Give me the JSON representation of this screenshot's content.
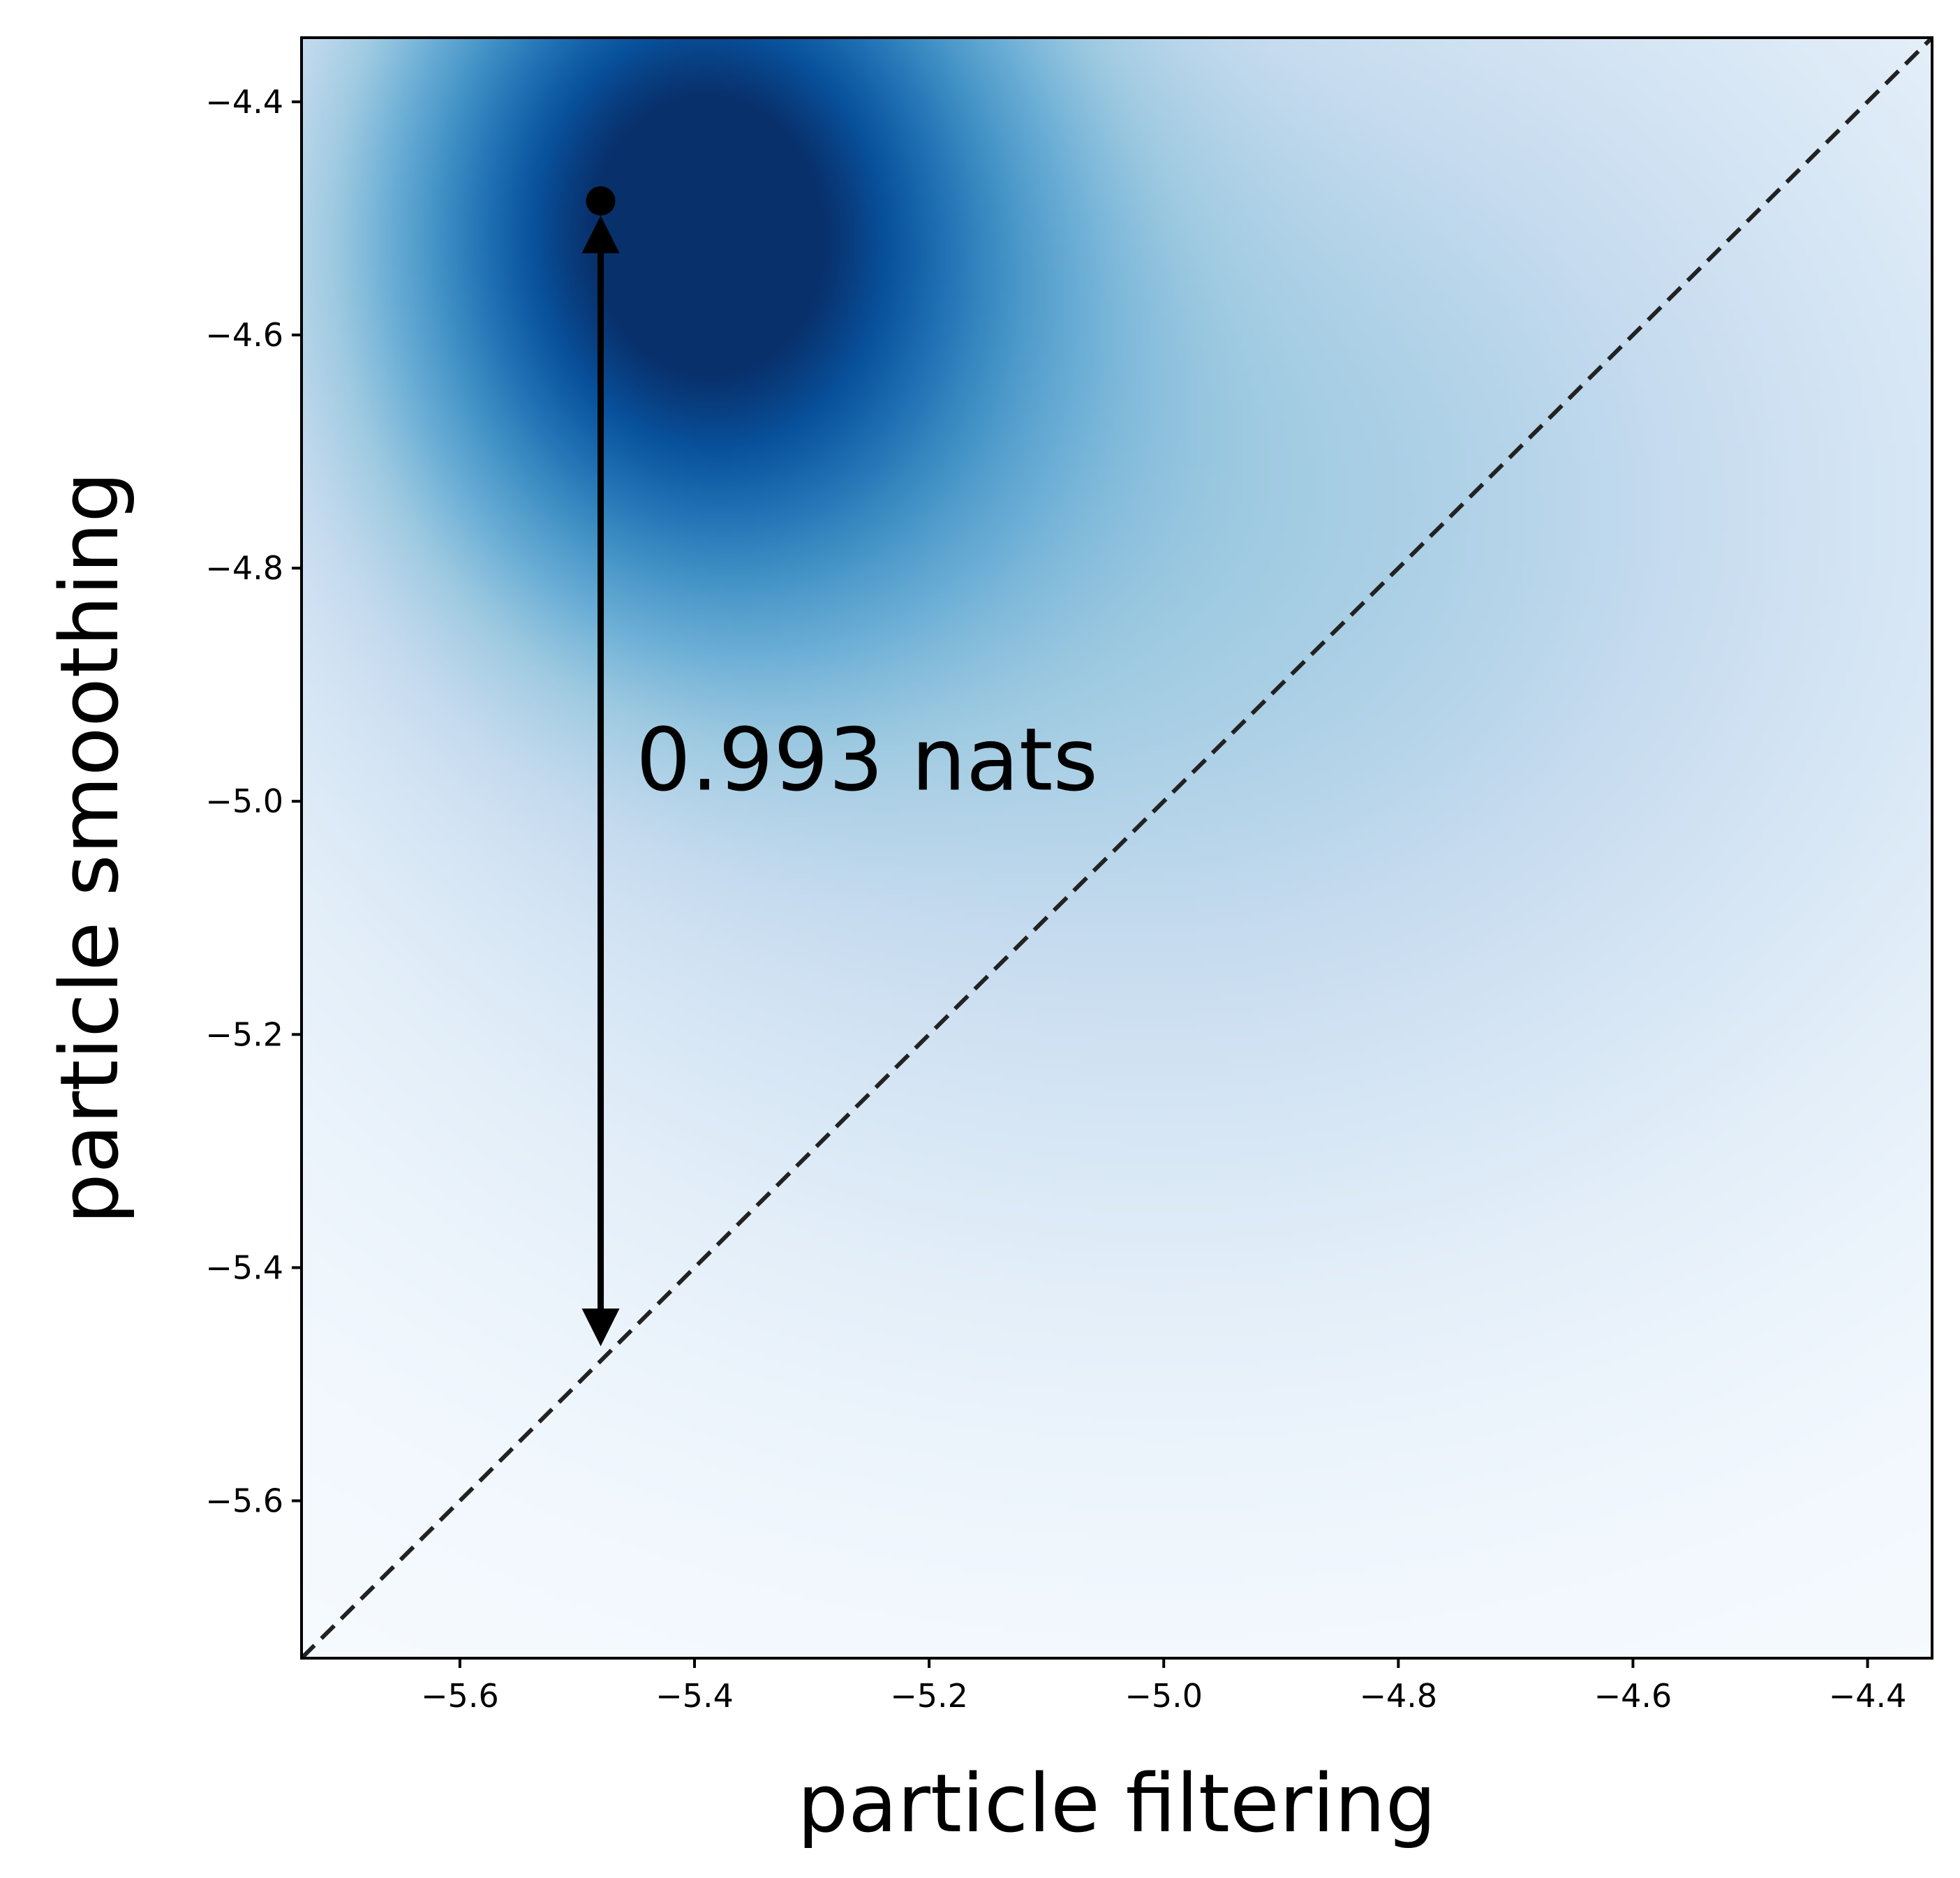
{
  "chart_data": {
    "type": "heatmap",
    "title": "",
    "xlabel": "particle filtering",
    "ylabel": "particle smoothing",
    "xlim": [
      -5.735,
      -4.345
    ],
    "ylim": [
      -5.735,
      -4.345
    ],
    "xticks": [
      -5.6,
      -5.4,
      -5.2,
      -5.0,
      -4.8,
      -4.6,
      -4.4
    ],
    "yticks": [
      -5.6,
      -5.4,
      -5.2,
      -5.0,
      -4.8,
      -4.6,
      -4.4
    ],
    "xtick_labels": [
      "−5.6",
      "−5.4",
      "−5.2",
      "−5.0",
      "−4.8",
      "−4.6",
      "−4.4"
    ],
    "ytick_labels": [
      "−5.6",
      "−5.4",
      "−5.2",
      "−5.0",
      "−4.8",
      "−4.6",
      "−4.4"
    ],
    "colormap": "Blues",
    "density_peak": {
      "x": -5.4,
      "y": -4.5
    },
    "reference_line": {
      "type": "y=x",
      "style": "dashed",
      "color": "#222222"
    },
    "marker": {
      "x": -5.48,
      "y": -4.485
    },
    "arrow": {
      "x": -5.48,
      "y_start": -4.485,
      "y_end": -5.48
    },
    "annotation": {
      "text": "0.993 nats",
      "x": -5.45,
      "y": -4.965
    },
    "grid": false
  }
}
